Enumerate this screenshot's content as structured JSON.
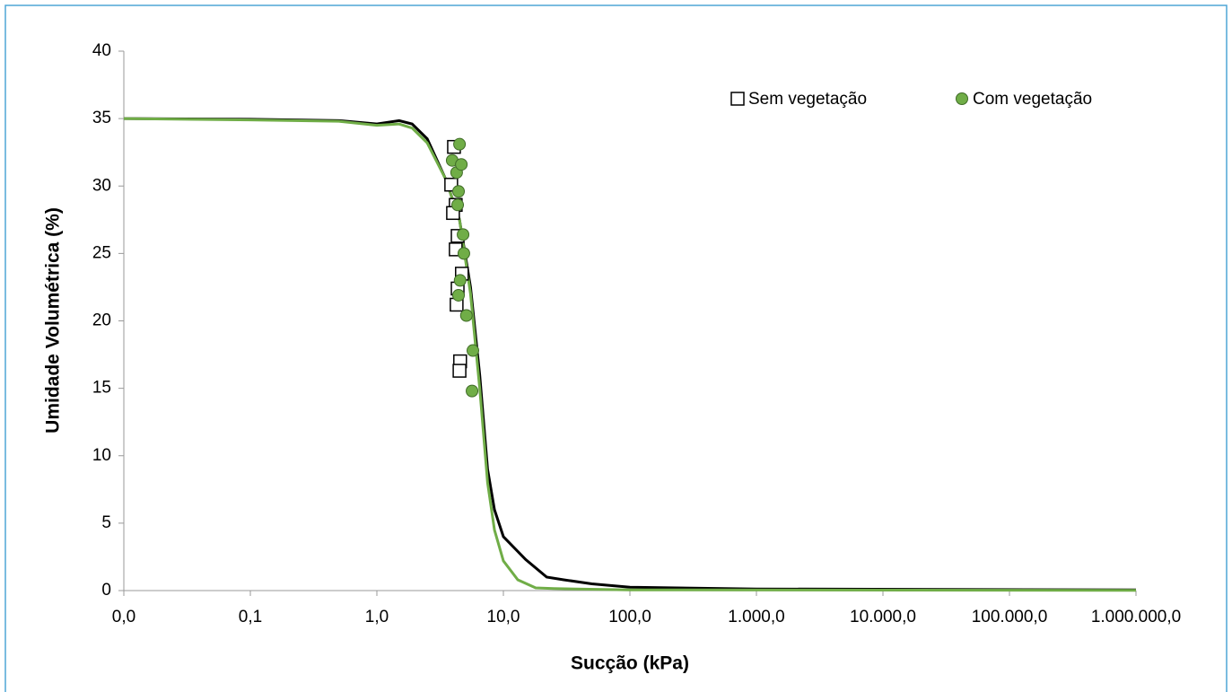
{
  "chart_data": {
    "type": "scatter",
    "xlabel": "Sucção (kPa)",
    "ylabel": "Umidade Volumétrica (%)",
    "xscale": "log",
    "xlim": [
      0.01,
      1000000
    ],
    "xticks": [
      {
        "value": 0.01,
        "label": "0,0"
      },
      {
        "value": 0.1,
        "label": "0,1"
      },
      {
        "value": 1,
        "label": "1,0"
      },
      {
        "value": 10,
        "label": "10,0"
      },
      {
        "value": 100,
        "label": "100,0"
      },
      {
        "value": 1000,
        "label": "1.000,0"
      },
      {
        "value": 10000,
        "label": "10.000,0"
      },
      {
        "value": 100000,
        "label": "100.000,0"
      },
      {
        "value": 1000000,
        "label": "1.000.000,0"
      }
    ],
    "ylim": [
      0,
      40
    ],
    "yticks": [
      0,
      5,
      10,
      15,
      20,
      25,
      30,
      35,
      40
    ],
    "legend": "top-right",
    "series": [
      {
        "name": "Sem vegetação",
        "marker": "square",
        "color": "#ffffff",
        "edgecolor": "#000000",
        "x": [
          4.07,
          3.87,
          4.2,
          4.0,
          4.35,
          4.2,
          4.7,
          4.35,
          4.27,
          4.55,
          4.5
        ],
        "values": [
          32.9,
          30.1,
          28.6,
          28.0,
          26.3,
          25.3,
          23.5,
          22.4,
          21.2,
          17.0,
          16.3
        ]
      },
      {
        "name": "Com vegetação",
        "marker": "circle",
        "color": "#70ad47",
        "edgecolor": "#3f6b27",
        "x": [
          4.5,
          3.94,
          4.27,
          4.65,
          4.42,
          4.35,
          4.8,
          4.87,
          4.55,
          4.42,
          5.1,
          5.74,
          5.65
        ],
        "values": [
          33.1,
          31.9,
          31.0,
          31.6,
          29.6,
          28.6,
          26.4,
          25.0,
          23.0,
          21.9,
          20.4,
          17.8,
          14.8
        ]
      }
    ],
    "curves": [
      {
        "color": "#000000",
        "x": [
          0.01,
          0.1,
          0.5,
          1.0,
          1.5,
          1.9,
          2.5,
          3.5,
          4.5,
          5.5,
          6.5,
          7.5,
          8.5,
          10,
          15,
          22,
          30,
          50,
          100,
          1000,
          1000000
        ],
        "values": [
          35.0,
          34.95,
          34.85,
          34.6,
          34.85,
          34.6,
          33.5,
          30.5,
          27.5,
          22.5,
          16,
          9,
          6,
          4,
          2.3,
          1.0,
          0.8,
          0.5,
          0.25,
          0.12,
          0.05
        ]
      },
      {
        "color": "#70ad47",
        "x": [
          0.01,
          0.1,
          0.5,
          1.0,
          1.5,
          1.9,
          2.5,
          3.5,
          4.5,
          5.5,
          6.5,
          7.5,
          8.5,
          10,
          13,
          18,
          25,
          100,
          1000000
        ],
        "values": [
          35.0,
          34.9,
          34.8,
          34.5,
          34.6,
          34.3,
          33.2,
          30.5,
          27.5,
          22,
          15,
          8,
          4.5,
          2.2,
          0.8,
          0.2,
          0.15,
          0.05,
          0.02
        ]
      }
    ]
  }
}
